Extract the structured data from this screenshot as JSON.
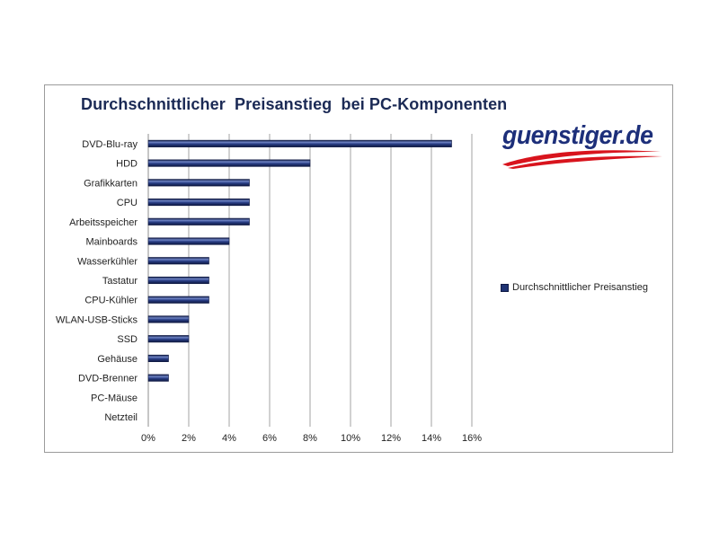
{
  "chart_data": {
    "type": "bar",
    "orientation": "horizontal",
    "title": "Durchschnittlicher  Preisanstieg  bei PC-Komponenten",
    "categories": [
      "DVD-Blu-ray",
      "HDD",
      "Grafikkarten",
      "CPU",
      "Arbeitsspeicher",
      "Mainboards",
      "Wasserkühler",
      "Tastatur",
      "CPU-Kühler",
      "WLAN-USB-Sticks",
      "SSD",
      "Gehäuse",
      "DVD-Brenner",
      "PC-Mäuse",
      "Netzteil"
    ],
    "series": [
      {
        "name": "Durchschnittlicher Preisanstieg",
        "values": [
          15,
          8,
          5,
          5,
          5,
          4,
          3,
          3,
          3,
          2,
          2,
          1,
          1,
          0,
          0
        ],
        "color": "#1f3373"
      }
    ],
    "xlim": [
      0,
      16
    ],
    "xticks": [
      0,
      2,
      4,
      6,
      8,
      10,
      12,
      14,
      16
    ],
    "xtick_labels": [
      "0%",
      "2%",
      "4%",
      "6%",
      "8%",
      "10%",
      "12%",
      "14%",
      "16%"
    ],
    "grid": "vertical",
    "legend_position": "right",
    "xlabel": "",
    "ylabel": ""
  },
  "logo": {
    "text": "guenstiger.de",
    "text_color": "#1d2f7a",
    "swoosh_color": "#d8141d"
  },
  "colors": {
    "bar": "#1f3373",
    "bar_highlight": "#6f84c4",
    "bar_dark": "#0d1740",
    "grid": "#8c8c8c",
    "title": "#1b2a55"
  }
}
